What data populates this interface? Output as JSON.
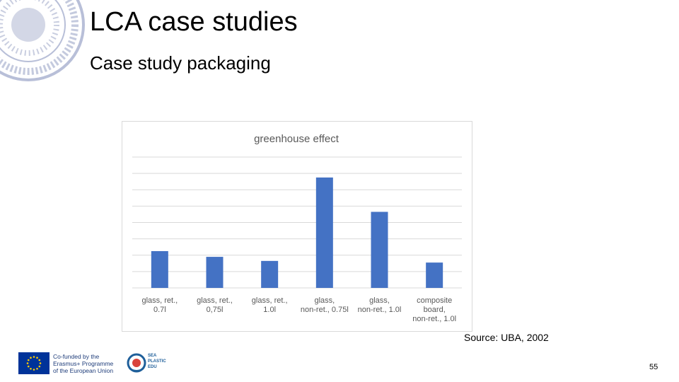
{
  "slide": {
    "title": "LCA case studies",
    "subtitle": "Case study packaging",
    "source": "Source: UBA, 2002",
    "page_number": "55"
  },
  "logos": {
    "eu_lines": [
      "Co-funded by the",
      "Erasmus+ Programme",
      "of the European Union"
    ],
    "sea_lines": [
      "SEA",
      "PLASTIC",
      "EDU"
    ]
  },
  "colors": {
    "bar": "#4472c4",
    "gridline": "#d9d9d9",
    "chart_title": "#595959",
    "tick_label": "#595959"
  },
  "chart_data": {
    "type": "bar",
    "title": "greenhouse effect",
    "xlabel": "",
    "ylabel": "",
    "grid": true,
    "legend": "none",
    "ylim": [
      0,
      8
    ],
    "categories": [
      "glass, ret., 0.7l",
      "glass, ret., 0,75l",
      "glass, ret., 1.0l",
      "glass, non-ret., 0.75l",
      "glass, non-ret., 1.0l",
      "composite board, non-ret., 1.0l"
    ],
    "values": [
      2.25,
      1.9,
      1.65,
      6.75,
      4.65,
      1.55
    ]
  }
}
